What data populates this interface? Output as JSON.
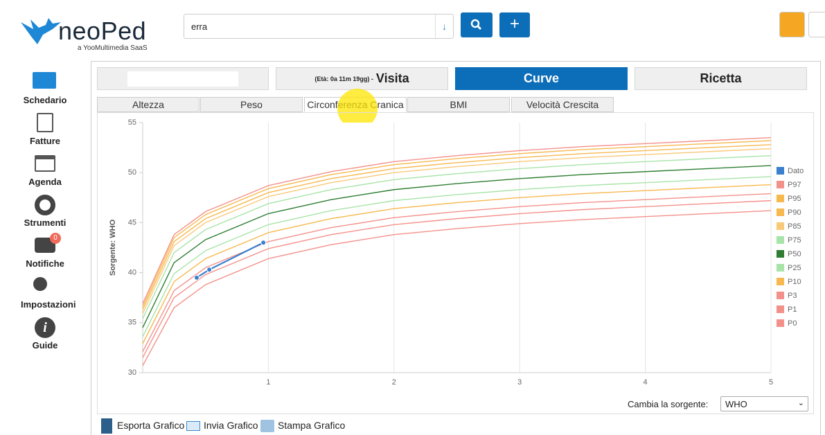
{
  "header": {
    "logo": "neoPed",
    "logo_sub": "a YooMultimedia SaaS",
    "search_value": "erra"
  },
  "sidebar": [
    "Schedario",
    "Fatture",
    "Agenda",
    "Strumenti",
    "Notifiche",
    "Impostazioni",
    "Guide"
  ],
  "notification_badge": 0,
  "top_tabs": {
    "age": "(Età: 0a 11m 19gg) -",
    "visita": "Visita",
    "curve": "Curve",
    "ricetta": "Ricetta"
  },
  "sub_tabs": [
    "Altezza",
    "Peso",
    "Circonferenza Cranica",
    "BMI",
    "Velocità Crescita"
  ],
  "chart_data": {
    "type": "line",
    "y_label": "Sorgente: WHO",
    "xlim": [
      0,
      5
    ],
    "xticks": [
      1,
      2,
      3,
      4,
      5
    ],
    "ylim": [
      30,
      55
    ],
    "yticks": [
      30,
      35,
      40,
      45,
      50,
      55
    ],
    "grid": true,
    "legend": "right",
    "series": [
      {
        "name": "Dato",
        "color": "#3a80cf",
        "markers": true,
        "x": [
          0.43,
          0.53,
          0.96
        ],
        "values": [
          39.5,
          40.3,
          43.0
        ]
      },
      {
        "name": "P97",
        "color": "#f4908a",
        "x": [
          0,
          0.25,
          0.5,
          1,
          1.5,
          2,
          2.5,
          3,
          3.5,
          4,
          4.5,
          5
        ],
        "values": [
          36.9,
          43.8,
          46.1,
          48.7,
          50.1,
          51.1,
          51.7,
          52.2,
          52.6,
          52.9,
          53.2,
          53.5
        ]
      },
      {
        "name": "P95",
        "color": "#f7b84e",
        "x": [
          0,
          0.25,
          0.5,
          1,
          1.5,
          2,
          2.5,
          3,
          3.5,
          4,
          4.5,
          5
        ],
        "values": [
          36.6,
          43.5,
          45.8,
          48.4,
          49.8,
          50.8,
          51.4,
          51.9,
          52.3,
          52.6,
          52.9,
          53.2
        ]
      },
      {
        "name": "P90",
        "color": "#f7b84e",
        "x": [
          0,
          0.25,
          0.5,
          1,
          1.5,
          2,
          2.5,
          3,
          3.5,
          4,
          4.5,
          5
        ],
        "values": [
          36.3,
          43.1,
          45.4,
          48.0,
          49.4,
          50.4,
          51.0,
          51.5,
          51.9,
          52.2,
          52.5,
          52.8
        ]
      },
      {
        "name": "P85",
        "color": "#f9c97a",
        "x": [
          0,
          0.25,
          0.5,
          1,
          1.5,
          2,
          2.5,
          3,
          3.5,
          4,
          4.5,
          5
        ],
        "values": [
          35.9,
          42.7,
          45.0,
          47.6,
          49.0,
          50.0,
          50.6,
          51.1,
          51.5,
          51.8,
          52.1,
          52.4
        ]
      },
      {
        "name": "P75",
        "color": "#a8e3a8",
        "x": [
          0,
          0.25,
          0.5,
          1,
          1.5,
          2,
          2.5,
          3,
          3.5,
          4,
          4.5,
          5
        ],
        "values": [
          35.4,
          42.0,
          44.3,
          46.9,
          48.3,
          49.3,
          49.9,
          50.4,
          50.8,
          51.1,
          51.4,
          51.7
        ]
      },
      {
        "name": "P50",
        "color": "#2e7d32",
        "x": [
          0,
          0.25,
          0.5,
          1,
          1.5,
          2,
          2.5,
          3,
          3.5,
          4,
          4.5,
          5
        ],
        "values": [
          34.5,
          41.0,
          43.3,
          45.9,
          47.3,
          48.3,
          48.9,
          49.4,
          49.8,
          50.1,
          50.4,
          50.7
        ]
      },
      {
        "name": "P25",
        "color": "#a8e3a8",
        "x": [
          0,
          0.25,
          0.5,
          1,
          1.5,
          2,
          2.5,
          3,
          3.5,
          4,
          4.5,
          5
        ],
        "values": [
          33.6,
          39.9,
          42.2,
          44.8,
          46.2,
          47.2,
          47.8,
          48.3,
          48.7,
          49.0,
          49.3,
          49.6
        ]
      },
      {
        "name": "P10",
        "color": "#f7b84e",
        "x": [
          0,
          0.25,
          0.5,
          1,
          1.5,
          2,
          2.5,
          3,
          3.5,
          4,
          4.5,
          5
        ],
        "values": [
          32.9,
          39.1,
          41.4,
          44.0,
          45.4,
          46.4,
          47.0,
          47.5,
          47.9,
          48.2,
          48.5,
          48.8
        ]
      },
      {
        "name": "P3",
        "color": "#f4908a",
        "x": [
          0,
          0.25,
          0.5,
          1,
          1.5,
          2,
          2.5,
          3,
          3.5,
          4,
          4.5,
          5
        ],
        "values": [
          32.1,
          38.2,
          40.5,
          43.1,
          44.5,
          45.5,
          46.1,
          46.6,
          47.0,
          47.3,
          47.6,
          47.9
        ]
      },
      {
        "name": "P1",
        "color": "#f4908a",
        "x": [
          0,
          0.25,
          0.5,
          1,
          1.5,
          2,
          2.5,
          3,
          3.5,
          4,
          4.5,
          5
        ],
        "values": [
          31.5,
          37.5,
          39.8,
          42.4,
          43.8,
          44.8,
          45.4,
          45.9,
          46.3,
          46.6,
          46.9,
          47.2
        ]
      },
      {
        "name": "P0",
        "color": "#f4908a",
        "x": [
          0,
          0.25,
          0.5,
          1,
          1.5,
          2,
          2.5,
          3,
          3.5,
          4,
          4.5,
          5
        ],
        "values": [
          30.7,
          36.5,
          38.8,
          41.4,
          42.8,
          43.8,
          44.4,
          44.9,
          45.3,
          45.6,
          45.9,
          46.2
        ]
      }
    ]
  },
  "source_selector": {
    "label": "Cambia la sorgente:",
    "value": "WHO"
  },
  "footer_actions": [
    "Esporta Grafico",
    "Invia Grafico",
    "Stampa Grafico"
  ]
}
